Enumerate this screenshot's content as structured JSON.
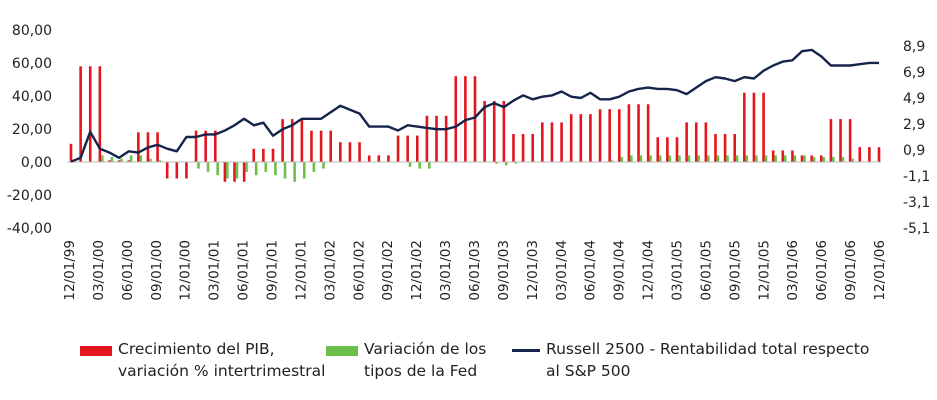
{
  "chart_data": {
    "type": "bar",
    "colors": {
      "gdp": "#e3161d",
      "fed": "#6dbf4b",
      "russell": "#14244a"
    },
    "y_left": {
      "min": -40,
      "max": 80,
      "ticks": [
        "80,00",
        "60,00",
        "40,00",
        "20,00",
        "0,00",
        "-20,00",
        "-40,00"
      ]
    },
    "y_right": {
      "min": -5.1,
      "max": 8.9,
      "ticks": [
        "8,9",
        "6,9",
        "4,9",
        "2,9",
        "0,9",
        "-1,1",
        "-3,1",
        "-5,1"
      ]
    },
    "x_ticks": [
      "12/01/99",
      "03/01/00",
      "06/01/00",
      "09/01/00",
      "12/01/00",
      "03/01/01",
      "06/01/01",
      "09/01/01",
      "12/01/01",
      "03/01/02",
      "06/01/02",
      "09/01/02",
      "12/01/02",
      "03/01/03",
      "06/01/03",
      "09/01/03",
      "12/01/03",
      "03/01/04",
      "06/01/04",
      "09/01/04",
      "12/01/04",
      "03/01/05",
      "06/01/05",
      "09/01/05",
      "12/01/05",
      "03/01/06",
      "06/01/06",
      "09/01/06",
      "12/01/06"
    ],
    "series": [
      {
        "name": "Crecimiento del PIB, variación % intertrimestral",
        "type": "bar",
        "axis": "left",
        "values": [
          11,
          58,
          58,
          58,
          1,
          1,
          1,
          18,
          18,
          18,
          -10,
          -10,
          -10,
          19,
          19,
          19,
          -12,
          -12,
          -12,
          8,
          8,
          8,
          26,
          26,
          26,
          19,
          19,
          19,
          12,
          12,
          12,
          4,
          4,
          4,
          16,
          16,
          16,
          28,
          28,
          28,
          52,
          52,
          52,
          37,
          37,
          37,
          17,
          17,
          17,
          24,
          24,
          24,
          29,
          29,
          29,
          32,
          32,
          32,
          35,
          35,
          35,
          15,
          15,
          15,
          24,
          24,
          24,
          17,
          17,
          17,
          42,
          42,
          42,
          7,
          7,
          7,
          4,
          4,
          4,
          26,
          26,
          26,
          9,
          9,
          9
        ]
      },
      {
        "name": "Variación de los tipos de la Fed",
        "type": "bar",
        "axis": "left",
        "values": [
          0,
          0,
          0,
          4,
          3,
          2,
          4,
          4,
          2,
          1,
          0,
          0,
          0,
          -4,
          -6,
          -8,
          -10,
          -10,
          -6,
          -8,
          -6,
          -8,
          -10,
          -12,
          -10,
          -6,
          -4,
          0,
          0,
          0,
          0,
          0,
          0,
          0,
          0,
          -3,
          -4,
          -4,
          0,
          0,
          0,
          0,
          0,
          0,
          -1,
          -2,
          -1,
          0,
          0,
          0,
          0,
          0,
          0,
          0,
          0,
          0,
          1,
          3,
          4,
          4,
          4,
          4,
          4,
          4,
          4,
          4,
          4,
          4,
          4,
          4,
          4,
          4,
          4,
          4,
          4,
          4,
          4,
          3,
          3,
          3,
          3,
          2,
          0,
          0,
          0
        ]
      },
      {
        "name": "Russell 2500 - Rentabilidad total respecto al S&P 500",
        "type": "line",
        "axis": "right",
        "values": [
          0.0,
          0.3,
          2.3,
          1.0,
          0.7,
          0.3,
          0.8,
          0.7,
          1.1,
          1.3,
          1.0,
          0.8,
          1.9,
          1.9,
          2.1,
          2.1,
          2.4,
          2.8,
          3.3,
          2.8,
          3.0,
          2.0,
          2.5,
          2.8,
          3.3,
          3.3,
          3.3,
          3.8,
          4.3,
          4.0,
          3.7,
          2.7,
          2.7,
          2.7,
          2.4,
          2.8,
          2.7,
          2.6,
          2.5,
          2.5,
          2.7,
          3.2,
          3.4,
          4.2,
          4.5,
          4.2,
          4.7,
          5.1,
          4.8,
          5.0,
          5.1,
          5.4,
          5.0,
          4.9,
          5.3,
          4.8,
          4.8,
          5.0,
          5.4,
          5.6,
          5.7,
          5.6,
          5.6,
          5.5,
          5.2,
          5.7,
          6.2,
          6.5,
          6.4,
          6.2,
          6.5,
          6.4,
          7.0,
          7.4,
          7.7,
          7.8,
          8.5,
          8.6,
          8.1,
          7.4,
          7.4,
          7.4,
          7.5,
          7.6,
          7.6
        ]
      }
    ]
  },
  "legend": {
    "items": [
      {
        "line1": "Crecimiento del PIB,",
        "line2": "variación % intertrimestral"
      },
      {
        "line1": "Variación de los",
        "line2": "tipos de la Fed"
      },
      {
        "line1": "Russell 2500 - Rentabilidad total respecto",
        "line2": "al S&P 500"
      }
    ]
  }
}
